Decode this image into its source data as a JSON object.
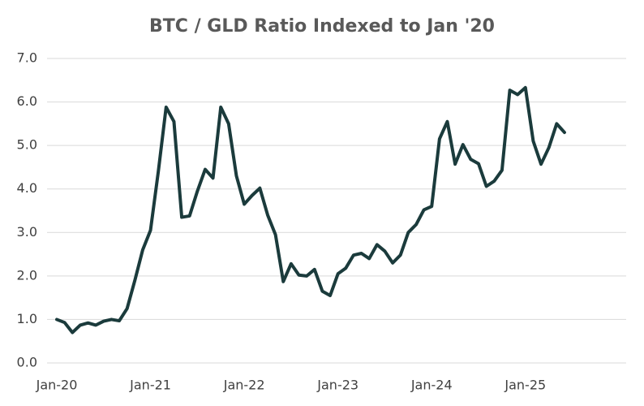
{
  "chart_data": {
    "type": "line",
    "title": "BTC / GLD Ratio Indexed to Jan '20",
    "categories": [
      "Jan-20",
      null,
      null,
      null,
      null,
      null,
      null,
      null,
      null,
      null,
      null,
      null,
      "Jan-21",
      null,
      null,
      null,
      null,
      null,
      null,
      null,
      null,
      null,
      null,
      null,
      "Jan-22",
      null,
      null,
      null,
      null,
      null,
      null,
      null,
      null,
      null,
      null,
      null,
      "Jan-23",
      null,
      null,
      null,
      null,
      null,
      null,
      null,
      null,
      null,
      null,
      null,
      "Jan-24",
      null,
      null,
      null,
      null,
      null,
      null,
      null,
      null,
      null,
      null,
      null,
      "Jan-25",
      null,
      null,
      null,
      null,
      null
    ],
    "series": [
      {
        "name": "BTC / GLD",
        "color": "#1b3b3c",
        "values": [
          1.0,
          0.93,
          0.7,
          0.87,
          0.92,
          0.87,
          0.96,
          1.0,
          0.97,
          1.25,
          1.9,
          2.6,
          3.05,
          4.4,
          5.88,
          5.55,
          3.35,
          3.38,
          3.95,
          4.45,
          4.25,
          5.88,
          5.5,
          4.3,
          3.65,
          3.85,
          4.02,
          3.4,
          2.95,
          1.87,
          2.28,
          2.02,
          2.0,
          2.15,
          1.65,
          1.55,
          2.05,
          2.18,
          2.48,
          2.52,
          2.4,
          2.72,
          2.57,
          2.3,
          2.48,
          3.0,
          3.18,
          3.52,
          3.6,
          5.15,
          5.55,
          4.57,
          5.02,
          4.68,
          4.58,
          4.06,
          4.18,
          4.43,
          6.27,
          6.17,
          6.33,
          5.1,
          4.57,
          4.95,
          5.5,
          5.3
        ]
      }
    ],
    "ylim": [
      0,
      7
    ],
    "yticks": [
      {
        "value": 0,
        "label": "0.0"
      },
      {
        "value": 1,
        "label": "1.0"
      },
      {
        "value": 2,
        "label": "2.0"
      },
      {
        "value": 3,
        "label": "3.0"
      },
      {
        "value": 4,
        "label": "4.0"
      },
      {
        "value": 5,
        "label": "5.0"
      },
      {
        "value": 6,
        "label": "6.0"
      },
      {
        "value": 7,
        "label": "7.0"
      }
    ],
    "grid": true
  }
}
